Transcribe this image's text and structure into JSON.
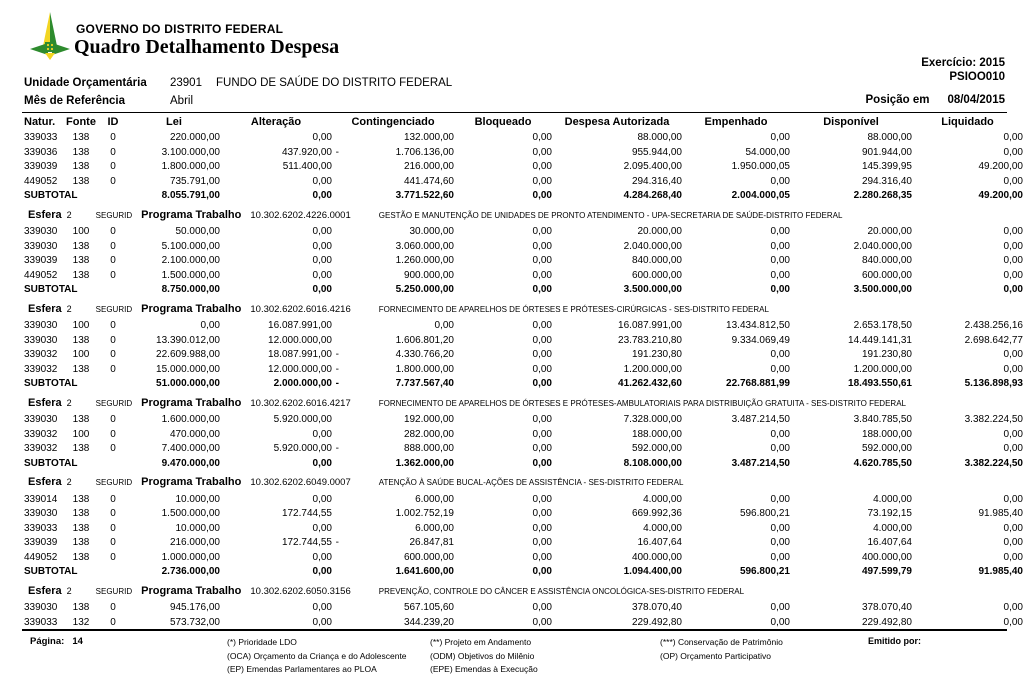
{
  "meta": {
    "logo_green": "#2e8b2e",
    "logo_yellow": "#f2d522",
    "text_color": "#000000"
  },
  "header": {
    "org": "GOVERNO DO DISTRITO FEDERAL",
    "title": "Quadro Detalhamento Despesa",
    "exercise": "Exercício: 2015",
    "report_code": "PSIOO010",
    "position_label": "Posição em",
    "position_date": "08/04/2015",
    "unit_label": "Unidade Orçamentária",
    "unit_code": "23901",
    "unit_name": "FUNDO DE SAÚDE DO DISTRITO FEDERAL",
    "month_label": "Mês de Referência",
    "month_value": "Abril"
  },
  "table": {
    "columns": [
      "Natur.",
      "Fonte",
      "ID",
      "Lei",
      "Alteração",
      "Contingenciado",
      "Bloqueado",
      "Despesa Autorizada",
      "Empenhado",
      "Disponível",
      "Liquidado"
    ],
    "esfera_label": "Esfera",
    "programa_label": "Programa Trabalho",
    "subtotal_label": "SUBTOTAL",
    "blocks": [
      {
        "rows": [
          {
            "natur": "339033",
            "fonte": "138",
            "id": "0",
            "values": [
              "220.000,00",
              "0,00",
              "132.000,00",
              "0,00",
              "88.000,00",
              "0,00",
              "88.000,00",
              "0,00"
            ]
          },
          {
            "natur": "339036",
            "fonte": "138",
            "id": "0",
            "values": [
              "3.100.000,00",
              "437.920,00 -",
              "1.706.136,00",
              "0,00",
              "955.944,00",
              "54.000,00",
              "901.944,00",
              "0,00"
            ]
          },
          {
            "natur": "339039",
            "fonte": "138",
            "id": "0",
            "values": [
              "1.800.000,00",
              "511.400,00",
              "216.000,00",
              "0,00",
              "2.095.400,00",
              "1.950.000,05",
              "145.399,95",
              "49.200,00"
            ]
          },
          {
            "natur": "449052",
            "fonte": "138",
            "id": "0",
            "values": [
              "735.791,00",
              "0,00",
              "441.474,60",
              "0,00",
              "294.316,40",
              "0,00",
              "294.316,40",
              "0,00"
            ]
          }
        ],
        "subtotal": [
          "8.055.791,00",
          "0,00",
          "3.771.522,60",
          "0,00",
          "4.284.268,40",
          "2.004.000,05",
          "2.280.268,35",
          "49.200,00"
        ]
      },
      {
        "esfera": "2",
        "seg": "SEGURID",
        "code": "10.302.6202.4226.0001",
        "desc": "GESTÃO E MANUTENÇÃO DE UNIDADES DE PRONTO ATENDIMENTO - UPA-SECRETARIA DE SAÚDE-DISTRITO FEDERAL",
        "rows": [
          {
            "natur": "339030",
            "fonte": "100",
            "id": "0",
            "values": [
              "50.000,00",
              "0,00",
              "30.000,00",
              "0,00",
              "20.000,00",
              "0,00",
              "20.000,00",
              "0,00"
            ]
          },
          {
            "natur": "339030",
            "fonte": "138",
            "id": "0",
            "values": [
              "5.100.000,00",
              "0,00",
              "3.060.000,00",
              "0,00",
              "2.040.000,00",
              "0,00",
              "2.040.000,00",
              "0,00"
            ]
          },
          {
            "natur": "339039",
            "fonte": "138",
            "id": "0",
            "values": [
              "2.100.000,00",
              "0,00",
              "1.260.000,00",
              "0,00",
              "840.000,00",
              "0,00",
              "840.000,00",
              "0,00"
            ]
          },
          {
            "natur": "449052",
            "fonte": "138",
            "id": "0",
            "values": [
              "1.500.000,00",
              "0,00",
              "900.000,00",
              "0,00",
              "600.000,00",
              "0,00",
              "600.000,00",
              "0,00"
            ]
          }
        ],
        "subtotal": [
          "8.750.000,00",
          "0,00",
          "5.250.000,00",
          "0,00",
          "3.500.000,00",
          "0,00",
          "3.500.000,00",
          "0,00"
        ]
      },
      {
        "esfera": "2",
        "seg": "SEGURID",
        "code": "10.302.6202.6016.4216",
        "desc": "FORNECIMENTO DE APARELHOS DE ÓRTESES E PRÓTESES-CIRÚRGICAS - SES-DISTRITO FEDERAL",
        "rows": [
          {
            "natur": "339030",
            "fonte": "100",
            "id": "0",
            "values": [
              "0,00",
              "16.087.991,00",
              "0,00",
              "0,00",
              "16.087.991,00",
              "13.434.812,50",
              "2.653.178,50",
              "2.438.256,16"
            ]
          },
          {
            "natur": "339030",
            "fonte": "138",
            "id": "0",
            "values": [
              "13.390.012,00",
              "12.000.000,00",
              "1.606.801,20",
              "0,00",
              "23.783.210,80",
              "9.334.069,49",
              "14.449.141,31",
              "2.698.642,77"
            ]
          },
          {
            "natur": "339032",
            "fonte": "100",
            "id": "0",
            "values": [
              "22.609.988,00",
              "18.087.991,00 -",
              "4.330.766,20",
              "0,00",
              "191.230,80",
              "0,00",
              "191.230,80",
              "0,00"
            ]
          },
          {
            "natur": "339032",
            "fonte": "138",
            "id": "0",
            "values": [
              "15.000.000,00",
              "12.000.000,00 -",
              "1.800.000,00",
              "0,00",
              "1.200.000,00",
              "0,00",
              "1.200.000,00",
              "0,00"
            ]
          }
        ],
        "subtotal": [
          "51.000.000,00",
          "2.000.000,00 -",
          "7.737.567,40",
          "0,00",
          "41.262.432,60",
          "22.768.881,99",
          "18.493.550,61",
          "5.136.898,93"
        ]
      },
      {
        "esfera": "2",
        "seg": "SEGURID",
        "code": "10.302.6202.6016.4217",
        "desc": "FORNECIMENTO DE APARELHOS DE ÓRTESES E PRÓTESES-AMBULATORIAIS PARA DISTRIBUIÇÃO GRATUITA - SES-DISTRITO FEDERAL",
        "rows": [
          {
            "natur": "339030",
            "fonte": "138",
            "id": "0",
            "values": [
              "1.600.000,00",
              "5.920.000,00",
              "192.000,00",
              "0,00",
              "7.328.000,00",
              "3.487.214,50",
              "3.840.785,50",
              "3.382.224,50"
            ]
          },
          {
            "natur": "339032",
            "fonte": "100",
            "id": "0",
            "values": [
              "470.000,00",
              "0,00",
              "282.000,00",
              "0,00",
              "188.000,00",
              "0,00",
              "188.000,00",
              "0,00"
            ]
          },
          {
            "natur": "339032",
            "fonte": "138",
            "id": "0",
            "values": [
              "7.400.000,00",
              "5.920.000,00 -",
              "888.000,00",
              "0,00",
              "592.000,00",
              "0,00",
              "592.000,00",
              "0,00"
            ]
          }
        ],
        "subtotal": [
          "9.470.000,00",
          "0,00",
          "1.362.000,00",
          "0,00",
          "8.108.000,00",
          "3.487.214,50",
          "4.620.785,50",
          "3.382.224,50"
        ]
      },
      {
        "esfera": "2",
        "seg": "SEGURID",
        "code": "10.302.6202.6049.0007",
        "desc": "ATENÇÃO À SAÚDE BUCAL-AÇÕES DE ASSISTÊNCIA - SES-DISTRITO FEDERAL",
        "rows": [
          {
            "natur": "339014",
            "fonte": "138",
            "id": "0",
            "values": [
              "10.000,00",
              "0,00",
              "6.000,00",
              "0,00",
              "4.000,00",
              "0,00",
              "4.000,00",
              "0,00"
            ]
          },
          {
            "natur": "339030",
            "fonte": "138",
            "id": "0",
            "values": [
              "1.500.000,00",
              "172.744,55",
              "1.002.752,19",
              "0,00",
              "669.992,36",
              "596.800,21",
              "73.192,15",
              "91.985,40"
            ]
          },
          {
            "natur": "339033",
            "fonte": "138",
            "id": "0",
            "values": [
              "10.000,00",
              "0,00",
              "6.000,00",
              "0,00",
              "4.000,00",
              "0,00",
              "4.000,00",
              "0,00"
            ]
          },
          {
            "natur": "339039",
            "fonte": "138",
            "id": "0",
            "values": [
              "216.000,00",
              "172.744,55 -",
              "26.847,81",
              "0,00",
              "16.407,64",
              "0,00",
              "16.407,64",
              "0,00"
            ]
          },
          {
            "natur": "449052",
            "fonte": "138",
            "id": "0",
            "values": [
              "1.000.000,00",
              "0,00",
              "600.000,00",
              "0,00",
              "400.000,00",
              "0,00",
              "400.000,00",
              "0,00"
            ]
          }
        ],
        "subtotal": [
          "2.736.000,00",
          "0,00",
          "1.641.600,00",
          "0,00",
          "1.094.400,00",
          "596.800,21",
          "497.599,79",
          "91.985,40"
        ]
      },
      {
        "esfera": "2",
        "seg": "SEGURID",
        "code": "10.302.6202.6050.3156",
        "desc": "PREVENÇÃO, CONTROLE DO CÂNCER E ASSISTÊNCIA ONCOLÓGICA-SES-DISTRITO FEDERAL",
        "rows": [
          {
            "natur": "339030",
            "fonte": "138",
            "id": "0",
            "values": [
              "945.176,00",
              "0,00",
              "567.105,60",
              "0,00",
              "378.070,40",
              "0,00",
              "378.070,40",
              "0,00"
            ]
          },
          {
            "natur": "339033",
            "fonte": "132",
            "id": "0",
            "values": [
              "573.732,00",
              "0,00",
              "344.239,20",
              "0,00",
              "229.492,80",
              "0,00",
              "229.492,80",
              "0,00"
            ]
          }
        ]
      }
    ]
  },
  "footer": {
    "page_label": "Página:",
    "page_number": "14",
    "legend_col1": [
      "(*)  Prioridade LDO",
      "(OCA)  Orçamento da Criança e do Adolescente",
      "(EP)  Emendas Parlamentares ao PLOA"
    ],
    "legend_col2": [
      "(**)  Projeto em Andamento",
      "(ODM) Objetivos do Milênio",
      "(EPE) Emendas à Execução"
    ],
    "legend_col3": [
      "(***)  Conservação de Patrimônio",
      "(OP)  Orçamento Participativo"
    ],
    "emitted_label": "Emitido por:"
  }
}
